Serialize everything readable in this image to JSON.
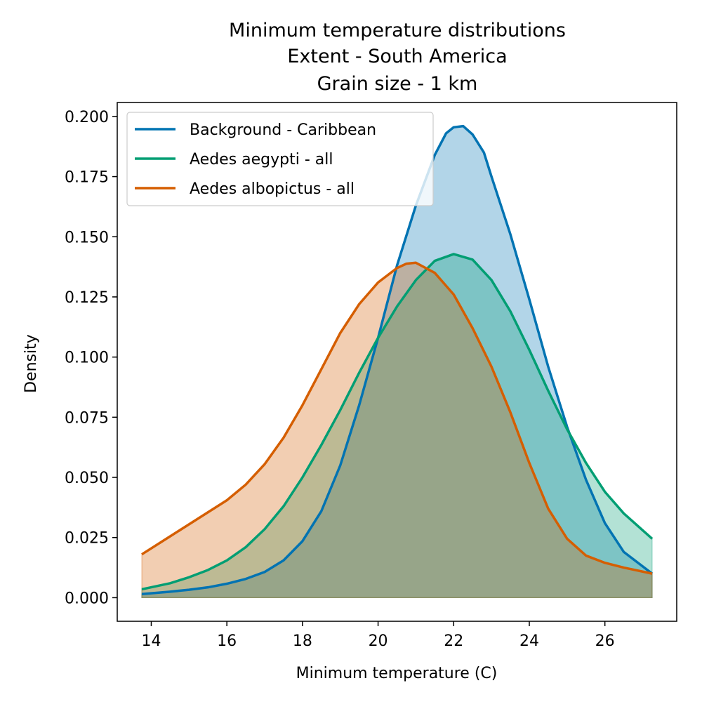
{
  "chart_data": {
    "type": "area",
    "title_lines": [
      "Minimum temperature distributions",
      "Extent - South America",
      "Grain size - 1 km"
    ],
    "xlabel": "Minimum temperature (C)",
    "ylabel": "Density",
    "xlim": [
      13.1,
      27.9
    ],
    "ylim": [
      -0.0098,
      0.2058
    ],
    "xticks": [
      14,
      16,
      18,
      20,
      22,
      24,
      26
    ],
    "yticks": [
      0.0,
      0.025,
      0.05,
      0.075,
      0.1,
      0.125,
      0.15,
      0.175,
      0.2
    ],
    "xtick_labels": [
      "14",
      "16",
      "18",
      "20",
      "22",
      "24",
      "26"
    ],
    "ytick_labels": [
      "0.000",
      "0.025",
      "0.050",
      "0.075",
      "0.100",
      "0.125",
      "0.150",
      "0.175",
      "0.200"
    ],
    "legend_position": "upper-left",
    "grid": false,
    "series": [
      {
        "name": "Background - Caribbean",
        "color": "#0173b2",
        "fill_opacity": 0.3,
        "x": [
          13.75,
          14.5,
          15.0,
          15.5,
          16.0,
          16.5,
          17.0,
          17.5,
          18.0,
          18.5,
          19.0,
          19.5,
          20.0,
          20.5,
          21.0,
          21.5,
          21.8,
          22.0,
          22.25,
          22.5,
          22.8,
          23.0,
          23.5,
          24.0,
          24.5,
          25.0,
          25.5,
          26.0,
          26.5,
          27.25
        ],
        "y": [
          0.0015,
          0.0025,
          0.0033,
          0.0043,
          0.0058,
          0.0078,
          0.0107,
          0.0155,
          0.0235,
          0.036,
          0.055,
          0.08,
          0.108,
          0.138,
          0.163,
          0.184,
          0.193,
          0.1955,
          0.196,
          0.1925,
          0.185,
          0.175,
          0.151,
          0.124,
          0.096,
          0.071,
          0.049,
          0.031,
          0.019,
          0.01
        ]
      },
      {
        "name": "Aedes aegypti - all",
        "color": "#029e73",
        "fill_opacity": 0.3,
        "x": [
          13.75,
          14.5,
          15.0,
          15.5,
          16.0,
          16.5,
          17.0,
          17.5,
          18.0,
          18.5,
          19.0,
          19.5,
          20.0,
          20.5,
          21.0,
          21.5,
          22.0,
          22.5,
          23.0,
          23.5,
          24.0,
          24.5,
          25.0,
          25.5,
          26.0,
          26.5,
          27.25
        ],
        "y": [
          0.0035,
          0.006,
          0.0085,
          0.0115,
          0.0155,
          0.021,
          0.0285,
          0.038,
          0.05,
          0.0635,
          0.078,
          0.0935,
          0.108,
          0.121,
          0.132,
          0.14,
          0.1428,
          0.1405,
          0.132,
          0.119,
          0.103,
          0.086,
          0.07,
          0.056,
          0.044,
          0.035,
          0.0245
        ]
      },
      {
        "name": "Aedes albopictus - all",
        "color": "#d55e00",
        "fill_opacity": 0.3,
        "x": [
          13.75,
          14.5,
          15.0,
          15.5,
          16.0,
          16.5,
          17.0,
          17.5,
          18.0,
          18.5,
          19.0,
          19.5,
          20.0,
          20.5,
          20.75,
          21.0,
          21.5,
          22.0,
          22.5,
          23.0,
          23.5,
          24.0,
          24.5,
          25.0,
          25.5,
          26.0,
          26.5,
          27.25
        ],
        "y": [
          0.018,
          0.0255,
          0.0305,
          0.0355,
          0.0405,
          0.047,
          0.0555,
          0.0665,
          0.08,
          0.095,
          0.11,
          0.122,
          0.131,
          0.137,
          0.1388,
          0.1392,
          0.135,
          0.126,
          0.112,
          0.096,
          0.077,
          0.056,
          0.037,
          0.0245,
          0.0175,
          0.0145,
          0.0125,
          0.01
        ]
      }
    ]
  }
}
